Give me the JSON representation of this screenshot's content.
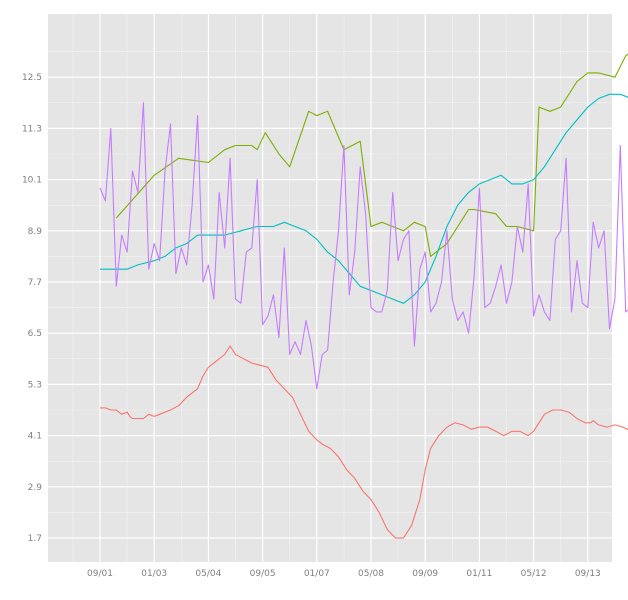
{
  "chart_data": {
    "type": "line",
    "title": "",
    "xlabel": "",
    "ylabel": "",
    "x_ticks": [
      "09/01",
      "01/03",
      "05/04",
      "09/05",
      "01/07",
      "05/08",
      "09/09",
      "01/11",
      "05/12",
      "09/13"
    ],
    "y_ticks": [
      "1.7",
      "2.9",
      "4.1",
      "5.3",
      "6.5",
      "7.7",
      "8.9",
      "10.1",
      "11.3",
      "12.5"
    ],
    "xlim": [
      -0.5,
      10.5
    ],
    "ylim": [
      1.2,
      13.9
    ],
    "grid": true,
    "legend": "none",
    "colors": {
      "panel_background": "#e5e5e5",
      "grid_major": "#ffffff",
      "grid_minor": "#f2f2f2",
      "tick_label": "#7f7f7f"
    },
    "series": [
      {
        "color": "#f8766d",
        "x": [
          0.0,
          0.1,
          0.2,
          0.3,
          0.4,
          0.5,
          0.55,
          0.6,
          0.8,
          0.9,
          1.0,
          1.1,
          1.3,
          1.45,
          1.6,
          1.8,
          1.9,
          2.0,
          2.1,
          2.2,
          2.3,
          2.4,
          2.5,
          2.65,
          2.8,
          2.95,
          3.1,
          3.25,
          3.4,
          3.55,
          3.7,
          3.85,
          4.0,
          4.1,
          4.25,
          4.4,
          4.55,
          4.7,
          4.85,
          5.0,
          5.15,
          5.3,
          5.45,
          5.6,
          5.75,
          5.9,
          6.0,
          6.1,
          6.25,
          6.4,
          6.55,
          6.7,
          6.85,
          7.0,
          7.15,
          7.3,
          7.45,
          7.6,
          7.75,
          7.9,
          8.0,
          8.1,
          8.2,
          8.35,
          8.5,
          8.65,
          8.8,
          8.95,
          9.05,
          9.1,
          9.2,
          9.35,
          9.5,
          9.65,
          9.8,
          9.9,
          10.0,
          10.05
        ],
        "y": [
          4.75,
          4.75,
          4.7,
          4.7,
          4.6,
          4.65,
          4.55,
          4.5,
          4.5,
          4.6,
          4.55,
          4.6,
          4.7,
          4.8,
          5.0,
          5.2,
          5.5,
          5.7,
          5.8,
          5.9,
          6.0,
          6.2,
          6.0,
          5.9,
          5.8,
          5.75,
          5.7,
          5.4,
          5.2,
          5.0,
          4.6,
          4.2,
          4.0,
          3.9,
          3.8,
          3.6,
          3.3,
          3.1,
          2.8,
          2.6,
          2.3,
          1.9,
          1.7,
          1.7,
          2.0,
          2.6,
          3.3,
          3.8,
          4.1,
          4.3,
          4.4,
          4.35,
          4.25,
          4.3,
          4.3,
          4.2,
          4.1,
          4.2,
          4.2,
          4.1,
          4.2,
          4.4,
          4.6,
          4.7,
          4.7,
          4.65,
          4.5,
          4.4,
          4.4,
          4.45,
          4.35,
          4.3,
          4.35,
          4.3,
          4.2,
          4.3,
          4.35,
          4.4
        ]
      },
      {
        "color": "#7cae00",
        "x": [
          0.3,
          1.0,
          1.45,
          2.0,
          2.3,
          2.5,
          2.8,
          2.9,
          3.05,
          3.3,
          3.5,
          3.85,
          4.0,
          4.2,
          4.5,
          4.8,
          5.0,
          5.2,
          5.6,
          5.8,
          6.0,
          6.1,
          6.4,
          6.8,
          6.9,
          7.3,
          7.5,
          7.7,
          8.0,
          8.1,
          8.3,
          8.5,
          8.8,
          9.0,
          9.2,
          9.5,
          9.7,
          10.0
        ],
        "y": [
          9.2,
          10.2,
          10.6,
          10.5,
          10.8,
          10.9,
          10.9,
          10.8,
          11.2,
          10.7,
          10.4,
          11.7,
          11.6,
          11.7,
          10.8,
          11.0,
          9.0,
          9.1,
          8.9,
          9.1,
          9.0,
          8.3,
          8.6,
          9.4,
          9.4,
          9.3,
          9.0,
          9.0,
          8.9,
          11.8,
          11.7,
          11.8,
          12.4,
          12.6,
          12.6,
          12.5,
          13.0,
          13.3
        ]
      },
      {
        "color": "#00bfc4",
        "x": [
          0.0,
          0.5,
          0.7,
          1.0,
          1.2,
          1.4,
          1.6,
          1.8,
          2.0,
          2.3,
          2.6,
          2.9,
          3.2,
          3.4,
          3.6,
          3.8,
          4.0,
          4.2,
          4.4,
          4.6,
          4.8,
          5.0,
          5.2,
          5.4,
          5.6,
          5.8,
          6.0,
          6.2,
          6.4,
          6.6,
          6.8,
          7.0,
          7.2,
          7.4,
          7.6,
          7.8,
          8.0,
          8.2,
          8.4,
          8.6,
          8.8,
          9.0,
          9.2,
          9.4,
          9.6,
          9.8,
          9.9,
          10.0
        ],
        "y": [
          8.0,
          8.0,
          8.1,
          8.2,
          8.3,
          8.5,
          8.6,
          8.8,
          8.8,
          8.8,
          8.9,
          9.0,
          9.0,
          9.1,
          9.0,
          8.9,
          8.7,
          8.4,
          8.2,
          7.9,
          7.6,
          7.5,
          7.4,
          7.3,
          7.2,
          7.4,
          7.7,
          8.3,
          9.0,
          9.5,
          9.8,
          10.0,
          10.1,
          10.2,
          10.0,
          10.0,
          10.1,
          10.4,
          10.8,
          11.2,
          11.5,
          11.8,
          12.0,
          12.1,
          12.1,
          12.0,
          12.1,
          12.2
        ]
      },
      {
        "color": "#c77cff",
        "x": [
          0.0,
          0.1,
          0.2,
          0.3,
          0.4,
          0.5,
          0.6,
          0.7,
          0.8,
          0.9,
          1.0,
          1.1,
          1.2,
          1.3,
          1.4,
          1.5,
          1.6,
          1.7,
          1.8,
          1.9,
          2.0,
          2.1,
          2.2,
          2.3,
          2.4,
          2.5,
          2.6,
          2.7,
          2.8,
          2.9,
          3.0,
          3.1,
          3.2,
          3.3,
          3.4,
          3.5,
          3.6,
          3.7,
          3.8,
          3.9,
          4.0,
          4.1,
          4.2,
          4.3,
          4.4,
          4.5,
          4.6,
          4.7,
          4.8,
          4.9,
          5.0,
          5.1,
          5.2,
          5.3,
          5.4,
          5.5,
          5.6,
          5.7,
          5.8,
          5.9,
          6.0,
          6.1,
          6.2,
          6.3,
          6.4,
          6.5,
          6.6,
          6.7,
          6.8,
          6.9,
          7.0,
          7.1,
          7.2,
          7.3,
          7.4,
          7.5,
          7.6,
          7.7,
          7.8,
          7.9,
          8.0,
          8.1,
          8.2,
          8.3,
          8.4,
          8.5,
          8.6,
          8.7,
          8.8,
          8.9,
          9.0,
          9.1,
          9.2,
          9.3,
          9.4,
          9.5,
          9.6,
          9.7,
          9.8,
          9.9,
          10.0,
          10.1
        ],
        "y": [
          9.9,
          9.6,
          11.3,
          7.6,
          8.8,
          8.4,
          10.3,
          9.8,
          11.9,
          8.0,
          8.6,
          8.2,
          10.3,
          11.4,
          7.9,
          8.5,
          8.1,
          9.5,
          11.6,
          7.7,
          8.1,
          7.3,
          9.8,
          8.5,
          10.6,
          7.3,
          7.2,
          8.4,
          8.5,
          10.1,
          6.7,
          6.9,
          7.4,
          6.4,
          8.5,
          6.0,
          6.3,
          6.0,
          6.8,
          6.2,
          5.2,
          6.0,
          6.1,
          7.7,
          8.9,
          10.9,
          7.4,
          8.4,
          10.4,
          9.3,
          7.1,
          7.0,
          7.0,
          7.5,
          9.8,
          8.2,
          8.7,
          8.9,
          6.2,
          8.0,
          8.4,
          7.0,
          7.2,
          7.7,
          8.9,
          7.3,
          6.8,
          7.0,
          6.5,
          7.8,
          9.9,
          7.1,
          7.2,
          7.6,
          8.1,
          7.2,
          7.7,
          9.0,
          8.4,
          10.0,
          6.9,
          7.4,
          7.0,
          6.8,
          8.7,
          8.9,
          10.6,
          7.0,
          8.2,
          7.2,
          7.1,
          9.1,
          8.5,
          8.9,
          6.6,
          7.3,
          10.9,
          7.0,
          7.1,
          6.6,
          7.4,
          8.2
        ]
      }
    ]
  }
}
